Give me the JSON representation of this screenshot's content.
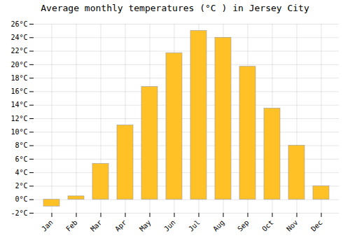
{
  "chart_data": {
    "type": "bar",
    "title": "Average monthly temperatures (°C ) in Jersey City",
    "categories": [
      "Jan",
      "Feb",
      "Mar",
      "Apr",
      "May",
      "Jun",
      "Jul",
      "Aug",
      "Sep",
      "Oct",
      "Nov",
      "Dec"
    ],
    "values": [
      -1.0,
      0.5,
      5.3,
      11.0,
      16.7,
      21.7,
      25.0,
      24.0,
      19.7,
      13.5,
      8.0,
      2.0
    ],
    "color": "#FFC125",
    "ylim": [
      -2,
      26
    ],
    "yticks": [
      {
        "value": -2,
        "label": "-2°C"
      },
      {
        "value": 0,
        "label": "0°C"
      },
      {
        "value": 2,
        "label": "2°C"
      },
      {
        "value": 4,
        "label": "4°C"
      },
      {
        "value": 6,
        "label": "6°C"
      },
      {
        "value": 8,
        "label": "8°C"
      },
      {
        "value": 10,
        "label": "10°C"
      },
      {
        "value": 12,
        "label": "12°C"
      },
      {
        "value": 14,
        "label": "14°C"
      },
      {
        "value": 16,
        "label": "16°C"
      },
      {
        "value": 18,
        "label": "18°C"
      },
      {
        "value": 20,
        "label": "20°C"
      },
      {
        "value": 22,
        "label": "22°C"
      },
      {
        "value": 24,
        "label": "24°C"
      },
      {
        "value": 26,
        "label": "26°C"
      }
    ],
    "grid": true
  }
}
